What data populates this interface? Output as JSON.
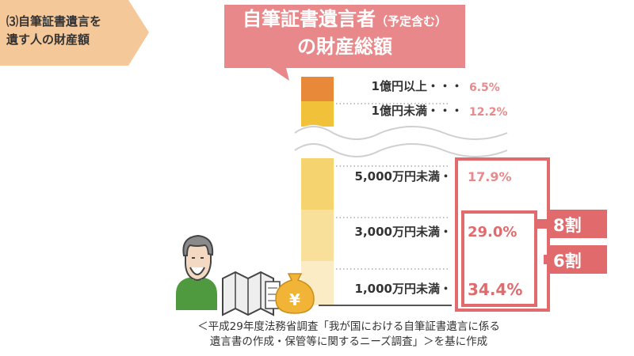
{
  "header": {
    "section_tag": "⑶自筆証書遺言を\n遺す人の財産額",
    "title_line1_main": "自筆証書遺言者",
    "title_line1_small": "（予定含む）",
    "title_line2": "の財産総額"
  },
  "colors": {
    "accent": "#e06a6c",
    "title_bg": "#e8888b",
    "tag_bg": "#f5c89a",
    "label_text": "#333333",
    "pct_light": "#e88a8c"
  },
  "chart_data": {
    "type": "bar",
    "categories": [
      "1億円以上・・・",
      "1億円未満・・・",
      "5,000万円未満・",
      "3,000万円未満・",
      "1,000万円未満・"
    ],
    "values": [
      6.5,
      12.2,
      17.9,
      29.0,
      34.4
    ],
    "value_labels": [
      "6.5%",
      "12.2%",
      "17.9%",
      "29.0%",
      "34.4%"
    ],
    "segment_colors": [
      "#e8893a",
      "#f2c13a",
      "#f5d470",
      "#f8e09a",
      "#fbecc6"
    ],
    "brackets": [
      {
        "label": "8割",
        "covers": [
          "5,000万円未満・",
          "3,000万円未満・",
          "1,000万円未満・"
        ]
      },
      {
        "label": "6割",
        "covers": [
          "3,000万円未満・",
          "1,000万円未満・"
        ]
      }
    ],
    "axis_break": true
  },
  "source_note": "＜平成29年度法務省調査「我が国における自筆証書遺言に係る\n遺言書の作成・保管等に関するニーズ調査」＞を基に作成"
}
